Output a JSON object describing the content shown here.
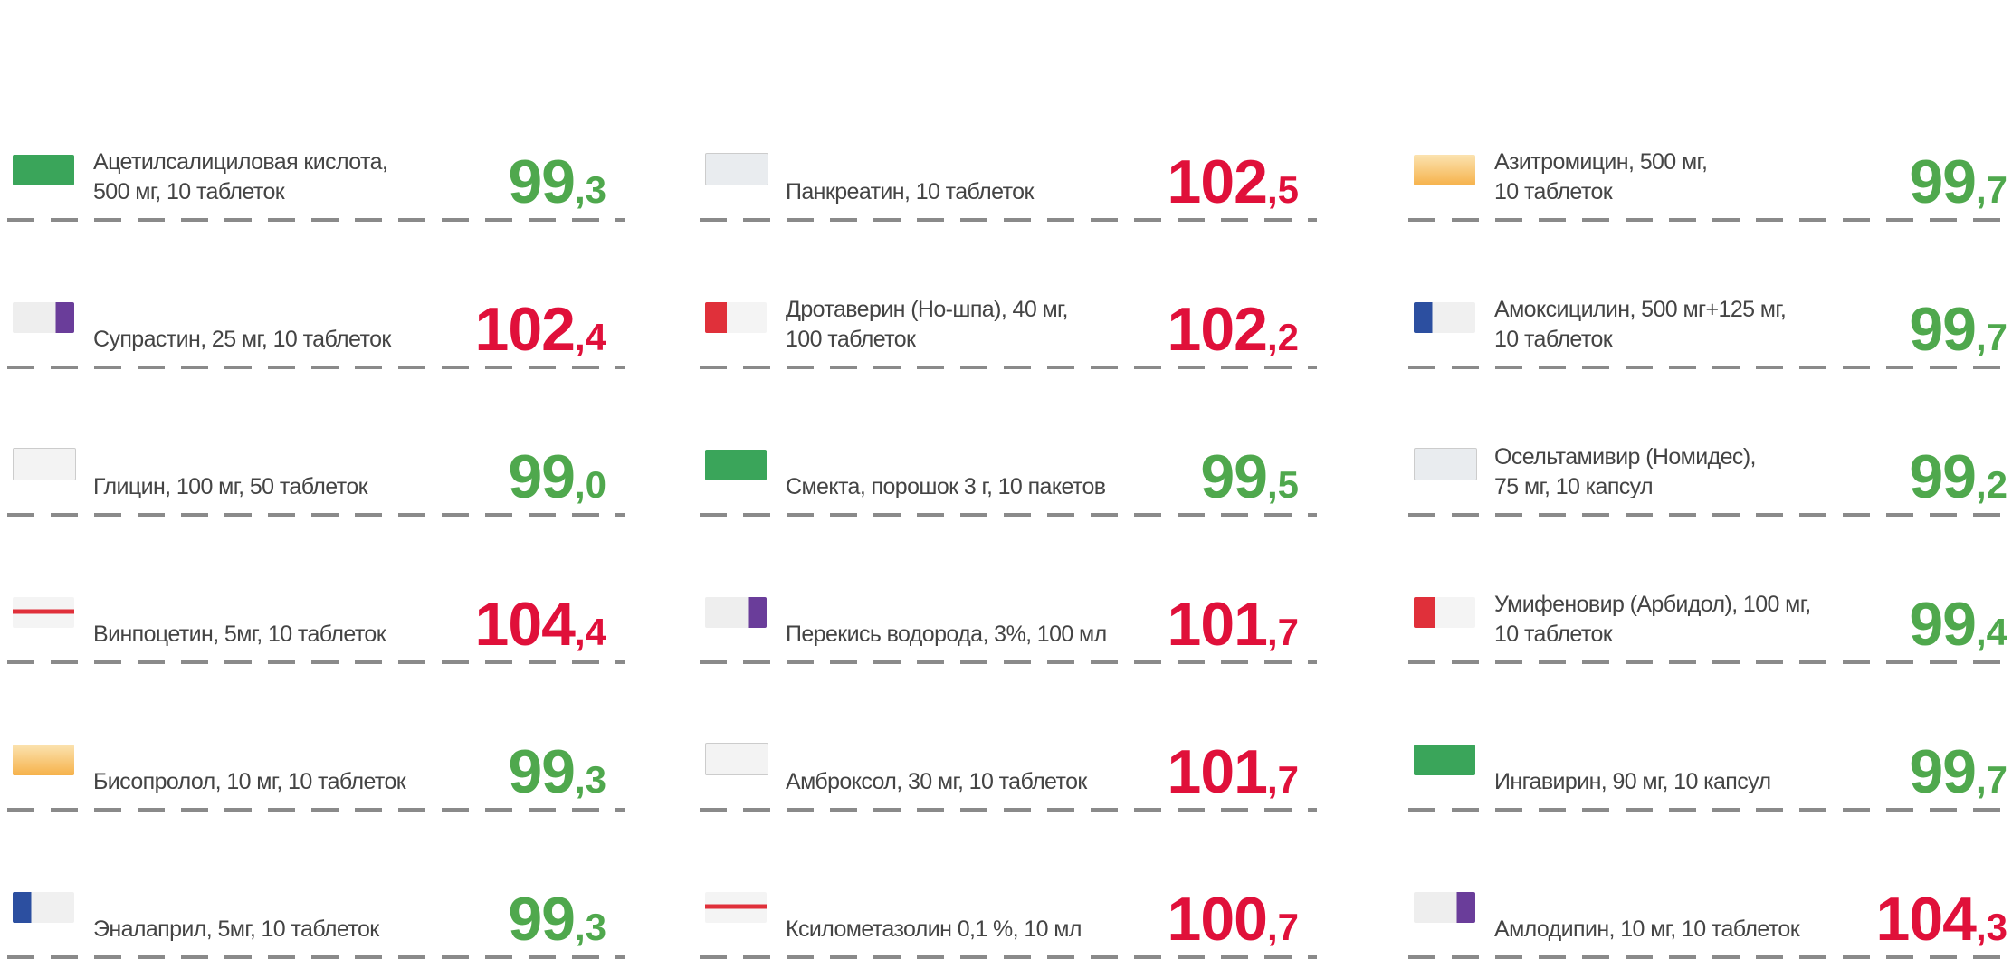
{
  "columns": [
    {
      "items": [
        {
          "name": [
            "Ацетилсалициловая кислота,",
            "500 мг, 10 таблеток"
          ],
          "value": "99,3",
          "color": "#4fa84d"
        },
        {
          "name": [
            "Супрастин, 25 мг, 10 таблеток"
          ],
          "value": "102,4",
          "color": "#e0103a"
        },
        {
          "name": [
            "Глицин, 100 мг, 50 таблеток"
          ],
          "value": "99,0",
          "color": "#4fa84d"
        },
        {
          "name": [
            "Винпоцетин, 5мг, 10 таблеток"
          ],
          "value": "104,4",
          "color": "#e0103a"
        },
        {
          "name": [
            "Бисопролол, 10 мг, 10 таблеток"
          ],
          "value": "99,3",
          "color": "#4fa84d"
        },
        {
          "name": [
            "Эналаприл, 5мг, 10 таблеток"
          ],
          "value": "99,3",
          "color": "#4fa84d"
        }
      ]
    },
    {
      "items": [
        {
          "name": [
            "Панкреатин, 10 таблеток"
          ],
          "value": "102,5",
          "color": "#e0103a"
        },
        {
          "name": [
            "Дротаверин (Но-шпа), 40 мг,",
            "100 таблеток"
          ],
          "value": "102,2",
          "color": "#e0103a"
        },
        {
          "name": [
            "Смекта, порошок 3 г, 10 пакетов"
          ],
          "value": "99,5",
          "color": "#4fa84d"
        },
        {
          "name": [
            "Перекись водорода, 3%, 100 мл"
          ],
          "value": "101,7",
          "color": "#e0103a"
        },
        {
          "name": [
            "Амброксол, 30 мг, 10 таблеток"
          ],
          "value": "101,7",
          "color": "#e0103a"
        },
        {
          "name": [
            "Ксилометазолин 0,1 %, 10 мл"
          ],
          "value": "100,7",
          "color": "#e0103a"
        }
      ]
    },
    {
      "items": [
        {
          "name": [
            "Азитромицин, 500 мг,",
            "10 таблеток"
          ],
          "value": "99,7",
          "color": "#4fa84d"
        },
        {
          "name": [
            "Амоксицилин, 500 мг+125 мг,",
            "10 таблеток"
          ],
          "value": "99,7",
          "color": "#4fa84d"
        },
        {
          "name": [
            "Осельтамивир (Номидес),",
            "75 мг, 10 капсул"
          ],
          "value": "99,2",
          "color": "#4fa84d"
        },
        {
          "name": [
            "Умифеновир (Арбидол), 100 мг,",
            "10 таблеток"
          ],
          "value": "99,4",
          "color": "#4fa84d"
        },
        {
          "name": [
            "Ингавирин, 90 мг, 10 капсул"
          ],
          "value": "99,7",
          "color": "#4fa84d"
        },
        {
          "name": [
            "Амлодипин, 10 мг, 10 таблеток"
          ],
          "value": "104,3",
          "color": "#e0103a"
        }
      ]
    }
  ]
}
